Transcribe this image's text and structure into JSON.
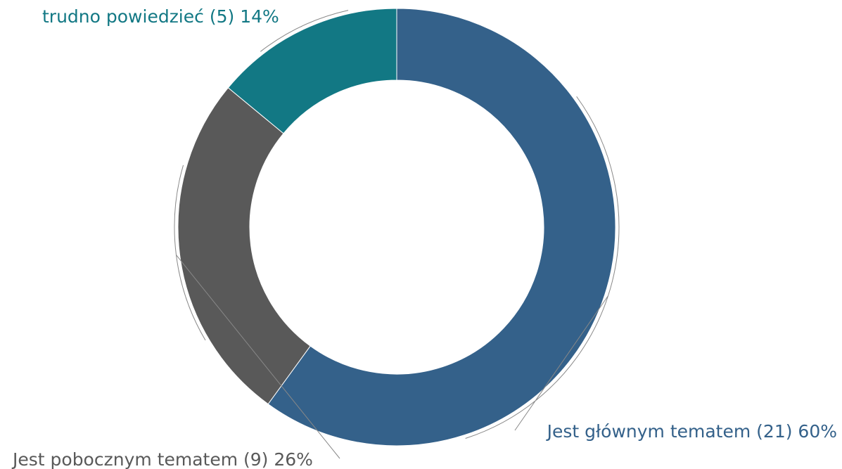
{
  "chart_data": {
    "type": "pie",
    "donut": true,
    "categories": [
      "Jest głównym tematem (21) 60%",
      "Jest pobocznym tematem (9) 26%",
      "trudno powiedzieć (5) 14%"
    ],
    "values": [
      60,
      26,
      14
    ],
    "colors": [
      "#34618a",
      "#595959",
      "#127884"
    ]
  }
}
